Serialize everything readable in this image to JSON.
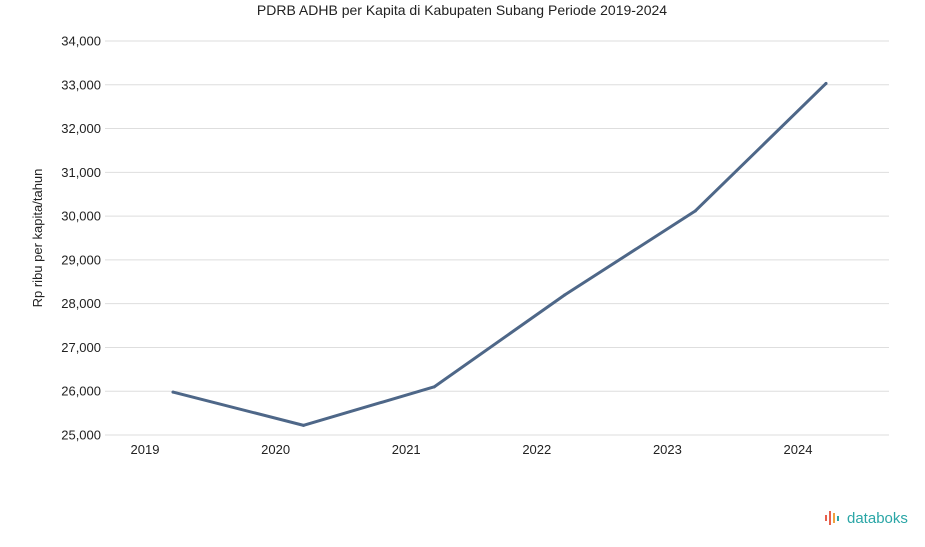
{
  "chart_data": {
    "type": "line",
    "title": "PDRB ADHB per Kapita di Kabupaten Subang Periode 2019-2024",
    "xlabel": "",
    "ylabel": "Rp ribu per kapita/tahun",
    "categories": [
      "2019",
      "2020",
      "2021",
      "2022",
      "2023",
      "2024"
    ],
    "series": [
      {
        "values": [
          25980,
          25220,
          26100,
          28200,
          30120,
          33030
        ],
        "color": "#4e6788"
      }
    ],
    "ylim": [
      25000,
      34000
    ],
    "yticks": [
      25000,
      26000,
      27000,
      28000,
      29000,
      30000,
      31000,
      32000,
      33000,
      34000
    ],
    "ytick_labels": [
      "25,000",
      "26,000",
      "27,000",
      "28,000",
      "29,000",
      "30,000",
      "31,000",
      "32,000",
      "33,000",
      "34,000"
    ],
    "grid": true,
    "legend": "none"
  },
  "branding": {
    "logo_text": "databoks",
    "logo_color": "#2aa6a6",
    "logo_accent": "#e8604c"
  }
}
